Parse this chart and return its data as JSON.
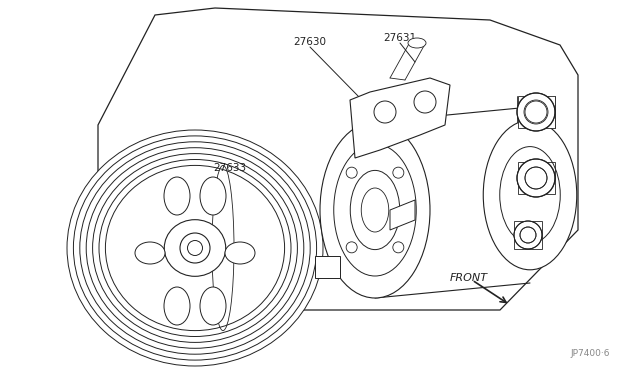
{
  "bg_color": "#ffffff",
  "lc": "#222222",
  "fig_width": 6.4,
  "fig_height": 3.72,
  "dpi": 100,
  "diagram_ref": "JP7400·6",
  "front_text": "FRONT"
}
